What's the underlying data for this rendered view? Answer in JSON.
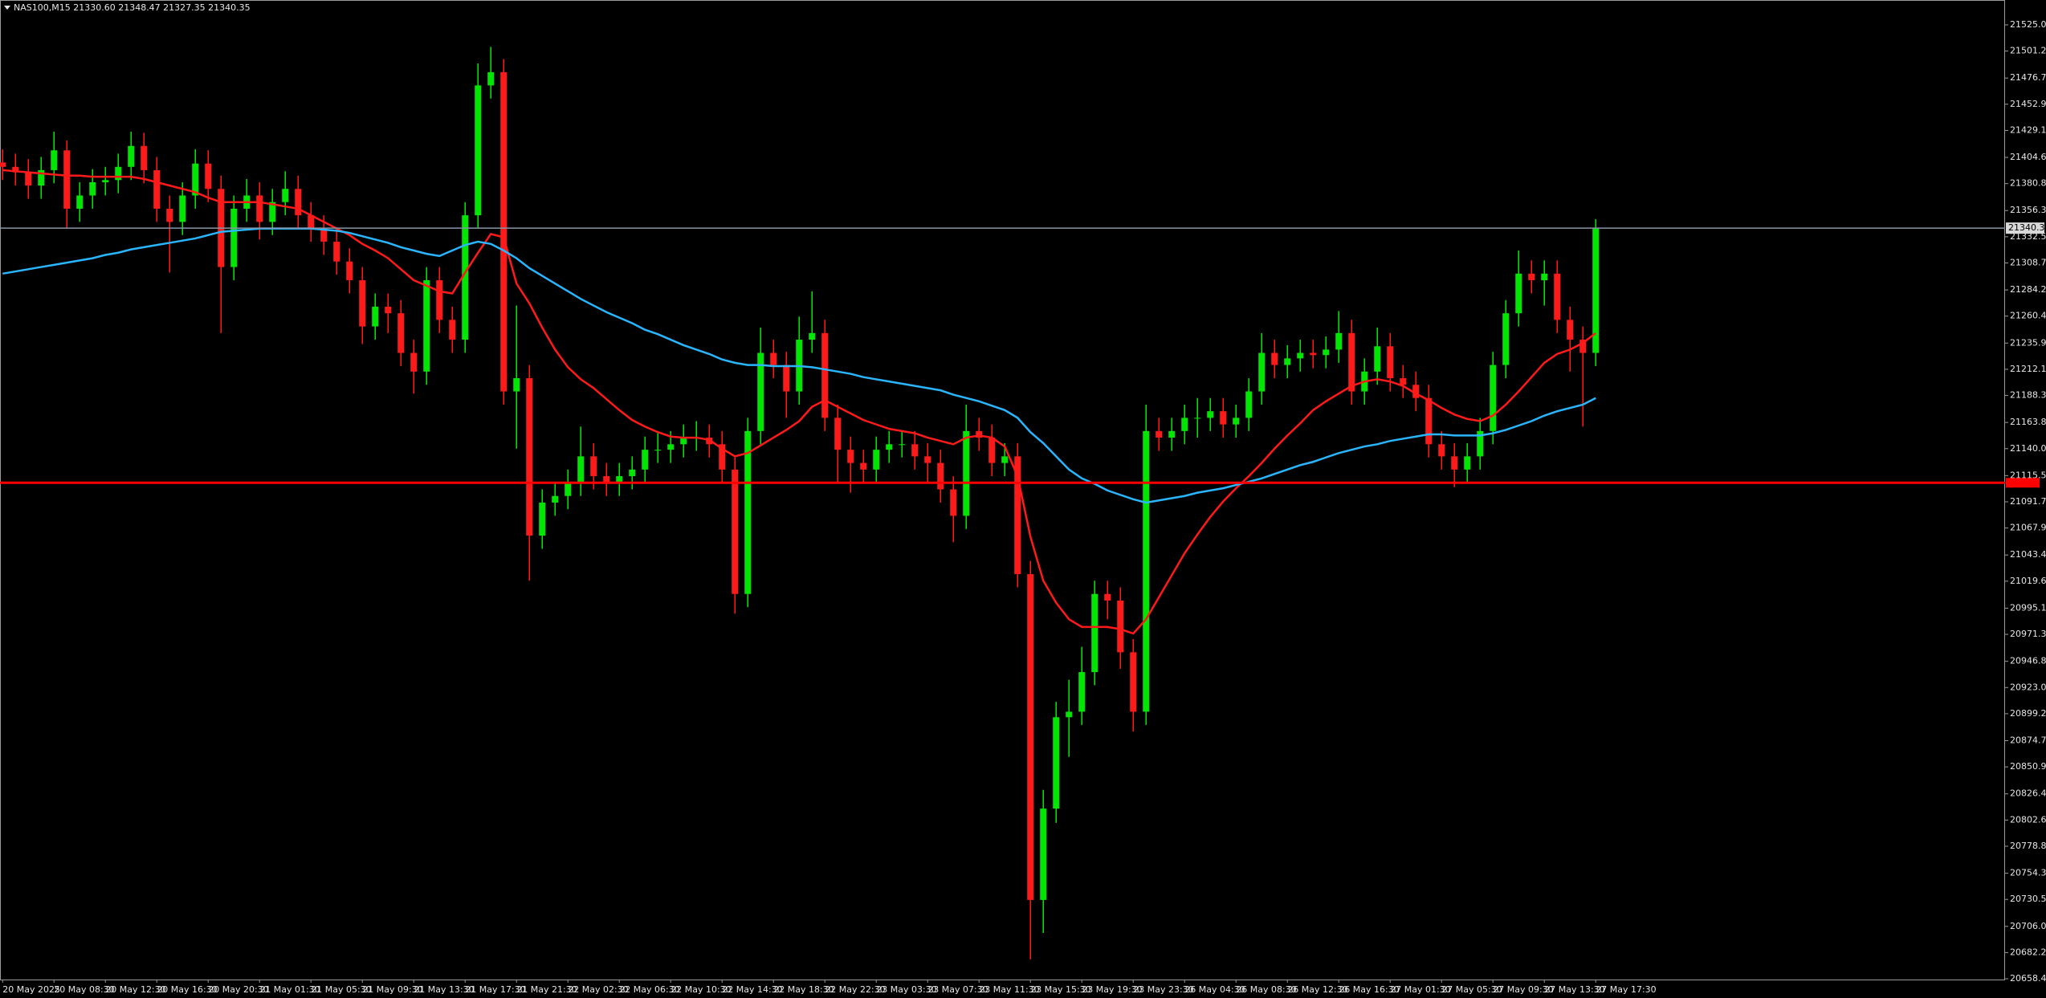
{
  "chart_data": {
    "type": "candlestick",
    "title": "NAS100,M15  21330.60 21348.47 21327.35 21340.35",
    "up_color": "#00e600",
    "down_color": "#ff1a1a",
    "ylim": [
      20657.7,
      21545.4
    ],
    "yticks": [
      {
        "value": 21525.0,
        "label": "21525.00"
      },
      {
        "value": 21501.2,
        "label": "21501.20"
      },
      {
        "value": 21476.7,
        "label": "21476.70"
      },
      {
        "value": 21452.9,
        "label": "21452.90"
      },
      {
        "value": 21429.1,
        "label": "21429.10"
      },
      {
        "value": 21404.6,
        "label": "21404.60"
      },
      {
        "value": 21380.8,
        "label": "21380.80"
      },
      {
        "value": 21356.3,
        "label": "21356.30"
      },
      {
        "value": 21332.5,
        "label": "21332.50"
      },
      {
        "value": 21308.7,
        "label": "21308.70"
      },
      {
        "value": 21284.2,
        "label": "21284.20"
      },
      {
        "value": 21260.4,
        "label": "21260.40"
      },
      {
        "value": 21235.9,
        "label": "21235.90"
      },
      {
        "value": 21212.1,
        "label": "21212.10"
      },
      {
        "value": 21188.3,
        "label": "21188.30"
      },
      {
        "value": 21163.8,
        "label": "21163.80"
      },
      {
        "value": 21140.0,
        "label": "21140.00"
      },
      {
        "value": 21115.5,
        "label": "21115.50"
      },
      {
        "value": 21091.7,
        "label": "21091.70"
      },
      {
        "value": 21067.9,
        "label": "21067.90"
      },
      {
        "value": 21043.4,
        "label": "21043.40"
      },
      {
        "value": 21019.6,
        "label": "21019.60"
      },
      {
        "value": 20995.1,
        "label": "20995.10"
      },
      {
        "value": 20971.3,
        "label": "20971.30"
      },
      {
        "value": 20946.8,
        "label": "20946.80"
      },
      {
        "value": 20923.0,
        "label": "20923.00"
      },
      {
        "value": 20899.2,
        "label": "20899.20"
      },
      {
        "value": 20874.7,
        "label": "20874.70"
      },
      {
        "value": 20850.9,
        "label": "20850.90"
      },
      {
        "value": 20826.4,
        "label": "20826.40"
      },
      {
        "value": 20802.6,
        "label": "20802.60"
      },
      {
        "value": 20778.8,
        "label": "20778.80"
      },
      {
        "value": 20754.3,
        "label": "20754.30"
      },
      {
        "value": 20730.5,
        "label": "20730.50"
      },
      {
        "value": 20706.0,
        "label": "20706.00"
      },
      {
        "value": 20682.2,
        "label": "20682.20"
      },
      {
        "value": 20658.4,
        "label": "20658.40"
      }
    ],
    "categories": [
      "20 May 2025",
      null,
      null,
      null,
      "20 May 08:30",
      null,
      null,
      null,
      "20 May 12:30",
      null,
      null,
      null,
      "20 May 16:30",
      null,
      null,
      null,
      "20 May 20:30",
      null,
      null,
      null,
      "21 May 01:30",
      null,
      null,
      null,
      "21 May 05:30",
      null,
      null,
      null,
      "21 May 09:30",
      null,
      null,
      null,
      "21 May 13:30",
      null,
      null,
      null,
      "21 May 17:30",
      null,
      null,
      null,
      "21 May 21:30",
      null,
      null,
      null,
      "22 May 02:30",
      null,
      null,
      null,
      "22 May 06:30",
      null,
      null,
      null,
      "22 May 10:30",
      null,
      null,
      null,
      "22 May 14:30",
      null,
      null,
      null,
      "22 May 18:30",
      null,
      null,
      null,
      "22 May 22:30",
      null,
      null,
      null,
      "23 May 03:30",
      null,
      null,
      null,
      "23 May 07:30",
      null,
      null,
      null,
      "23 May 11:30",
      null,
      null,
      null,
      "23 May 15:30",
      null,
      null,
      null,
      "23 May 19:30",
      null,
      null,
      null,
      "23 May 23:30",
      null,
      null,
      null,
      "26 May 04:30",
      null,
      null,
      null,
      "26 May 08:30",
      null,
      null,
      null,
      "26 May 12:30",
      null,
      null,
      null,
      "26 May 16:30",
      null,
      null,
      null,
      "27 May 01:30",
      null,
      null,
      null,
      "27 May 05:30",
      null,
      null,
      null,
      "27 May 09:30",
      null,
      null,
      null,
      "27 May 13:30",
      null,
      null,
      null,
      "27 May 17:30"
    ],
    "candles": [
      [
        21400,
        21412,
        21384,
        21396
      ],
      [
        21396,
        21408,
        21379,
        21391
      ],
      [
        21391,
        21403,
        21367,
        21379
      ],
      [
        21379,
        21405,
        21367,
        21393
      ],
      [
        21393,
        21428,
        21381,
        21411
      ],
      [
        21411,
        21420,
        21340,
        21358
      ],
      [
        21358,
        21382,
        21346,
        21370
      ],
      [
        21370,
        21394,
        21358,
        21382
      ],
      [
        21382,
        21396,
        21370,
        21384
      ],
      [
        21384,
        21408,
        21372,
        21396
      ],
      [
        21396,
        21428,
        21384,
        21415
      ],
      [
        21415,
        21427,
        21381,
        21393
      ],
      [
        21393,
        21405,
        21346,
        21358
      ],
      [
        21358,
        21370,
        21300,
        21346
      ],
      [
        21346,
        21382,
        21334,
        21370
      ],
      [
        21370,
        21412,
        21358,
        21399
      ],
      [
        21399,
        21411,
        21364,
        21376
      ],
      [
        21376,
        21388,
        21245,
        21305
      ],
      [
        21305,
        21370,
        21293,
        21358
      ],
      [
        21358,
        21385,
        21346,
        21370
      ],
      [
        21370,
        21382,
        21330,
        21346
      ],
      [
        21346,
        21376,
        21334,
        21364
      ],
      [
        21364,
        21392,
        21352,
        21376
      ],
      [
        21376,
        21388,
        21340,
        21352
      ],
      [
        21352,
        21364,
        21328,
        21340
      ],
      [
        21340,
        21352,
        21316,
        21328
      ],
      [
        21328,
        21340,
        21298,
        21310
      ],
      [
        21310,
        21322,
        21281,
        21293
      ],
      [
        21293,
        21305,
        21235,
        21251
      ],
      [
        21251,
        21281,
        21239,
        21269
      ],
      [
        21269,
        21281,
        21245,
        21263
      ],
      [
        21263,
        21275,
        21215,
        21227
      ],
      [
        21227,
        21239,
        21190,
        21210
      ],
      [
        21210,
        21305,
        21198,
        21293
      ],
      [
        21293,
        21305,
        21245,
        21257
      ],
      [
        21257,
        21269,
        21227,
        21239
      ],
      [
        21239,
        21364,
        21227,
        21352
      ],
      [
        21352,
        21490,
        21340,
        21470
      ],
      [
        21470,
        21505,
        21458,
        21482
      ],
      [
        21482,
        21494,
        21180,
        21192
      ],
      [
        21192,
        21270,
        21140,
        21204
      ],
      [
        21204,
        21216,
        21020,
        21061
      ],
      [
        21061,
        21103,
        21049,
        21091
      ],
      [
        21091,
        21109,
        21079,
        21097
      ],
      [
        21097,
        21121,
        21085,
        21109
      ],
      [
        21109,
        21160,
        21097,
        21133
      ],
      [
        21133,
        21145,
        21103,
        21115
      ],
      [
        21115,
        21127,
        21097,
        21109
      ],
      [
        21109,
        21127,
        21097,
        21115
      ],
      [
        21115,
        21133,
        21103,
        21121
      ],
      [
        21121,
        21151,
        21109,
        21139
      ],
      [
        21139,
        21156,
        21127,
        21139
      ],
      [
        21139,
        21156,
        21127,
        21144
      ],
      [
        21144,
        21162,
        21132,
        21150
      ],
      [
        21150,
        21165,
        21138,
        21150
      ],
      [
        21150,
        21162,
        21132,
        21144
      ],
      [
        21144,
        21156,
        21109,
        21121
      ],
      [
        21121,
        21133,
        20990,
        21008
      ],
      [
        21008,
        21168,
        20996,
        21156
      ],
      [
        21156,
        21250,
        21144,
        21227
      ],
      [
        21227,
        21239,
        21204,
        21216
      ],
      [
        21216,
        21228,
        21168,
        21192
      ],
      [
        21192,
        21260,
        21180,
        21239
      ],
      [
        21239,
        21283,
        21227,
        21245
      ],
      [
        21245,
        21257,
        21156,
        21168
      ],
      [
        21168,
        21180,
        21110,
        21139
      ],
      [
        21139,
        21151,
        21100,
        21127
      ],
      [
        21127,
        21139,
        21109,
        21121
      ],
      [
        21121,
        21151,
        21109,
        21139
      ],
      [
        21139,
        21156,
        21127,
        21144
      ],
      [
        21144,
        21156,
        21132,
        21144
      ],
      [
        21144,
        21156,
        21121,
        21133
      ],
      [
        21133,
        21145,
        21110,
        21127
      ],
      [
        21127,
        21139,
        21091,
        21103
      ],
      [
        21103,
        21115,
        21055,
        21079
      ],
      [
        21079,
        21180,
        21067,
        21156
      ],
      [
        21156,
        21168,
        21138,
        21150
      ],
      [
        21150,
        21162,
        21115,
        21127
      ],
      [
        21127,
        21145,
        21115,
        21133
      ],
      [
        21133,
        21145,
        21014,
        21026
      ],
      [
        21026,
        21038,
        20676,
        20730
      ],
      [
        20730,
        20830,
        20700,
        20813
      ],
      [
        20813,
        20910,
        20800,
        20896
      ],
      [
        20896,
        20930,
        20860,
        20901
      ],
      [
        20901,
        20960,
        20889,
        20937
      ],
      [
        20937,
        21020,
        20925,
        21008
      ],
      [
        21008,
        21020,
        20985,
        21002
      ],
      [
        21002,
        21014,
        20940,
        20955
      ],
      [
        20955,
        20967,
        20883,
        20901
      ],
      [
        20901,
        21180,
        20889,
        21156
      ],
      [
        21156,
        21168,
        21138,
        21150
      ],
      [
        21150,
        21168,
        21138,
        21156
      ],
      [
        21156,
        21180,
        21144,
        21168
      ],
      [
        21168,
        21186,
        21150,
        21168
      ],
      [
        21168,
        21186,
        21156,
        21174
      ],
      [
        21174,
        21186,
        21150,
        21162
      ],
      [
        21162,
        21180,
        21150,
        21168
      ],
      [
        21168,
        21204,
        21156,
        21192
      ],
      [
        21192,
        21245,
        21180,
        21227
      ],
      [
        21227,
        21239,
        21204,
        21216
      ],
      [
        21216,
        21234,
        21204,
        21222
      ],
      [
        21222,
        21239,
        21210,
        21227
      ],
      [
        21227,
        21239,
        21213,
        21225
      ],
      [
        21225,
        21242,
        21213,
        21230
      ],
      [
        21230,
        21265,
        21218,
        21245
      ],
      [
        21245,
        21257,
        21180,
        21192
      ],
      [
        21192,
        21222,
        21180,
        21210
      ],
      [
        21210,
        21250,
        21198,
        21233
      ],
      [
        21233,
        21245,
        21192,
        21204
      ],
      [
        21204,
        21216,
        21186,
        21198
      ],
      [
        21198,
        21210,
        21174,
        21186
      ],
      [
        21186,
        21198,
        21132,
        21144
      ],
      [
        21144,
        21156,
        21121,
        21133
      ],
      [
        21133,
        21145,
        21105,
        21121
      ],
      [
        21121,
        21145,
        21109,
        21133
      ],
      [
        21133,
        21168,
        21121,
        21156
      ],
      [
        21156,
        21228,
        21144,
        21216
      ],
      [
        21216,
        21275,
        21204,
        21263
      ],
      [
        21263,
        21320,
        21251,
        21299
      ],
      [
        21299,
        21311,
        21281,
        21293
      ],
      [
        21293,
        21311,
        21270,
        21299
      ],
      [
        21299,
        21311,
        21245,
        21257
      ],
      [
        21257,
        21269,
        21210,
        21239
      ],
      [
        21239,
        21251,
        21160,
        21227
      ],
      [
        21227,
        21348.47,
        21215,
        21340.35
      ]
    ],
    "lines": [
      {
        "color": "#ff1a1a",
        "values": [
          21393,
          21392,
          21391,
          21390,
          21389,
          21388,
          21388,
          21387,
          21387,
          21387,
          21387,
          21385,
          21382,
          21379,
          21376,
          21373,
          21368,
          21364,
          21364,
          21364,
          21364,
          21362,
          21360,
          21358,
          21352,
          21346,
          21340,
          21334,
          21326,
          21320,
          21313,
          21303,
          21293,
          21288,
          21283,
          21281,
          21300,
          21318,
          21335,
          21332,
          21290,
          21272,
          21250,
          21230,
          21214,
          21203,
          21195,
          21185,
          21175,
          21166,
          21160,
          21155,
          21151,
          21150,
          21150,
          21148,
          21140,
          21133,
          21136,
          21143,
          21150,
          21157,
          21165,
          21178,
          21184,
          21178,
          21172,
          21166,
          21162,
          21158,
          21156,
          21154,
          21150,
          21147,
          21144,
          21150,
          21152,
          21150,
          21142,
          21115,
          21060,
          21020,
          21000,
          20985,
          20978,
          20978,
          20978,
          20976,
          20972,
          20985,
          21005,
          21025,
          21045,
          21062,
          21078,
          21092,
          21104,
          21115,
          21127,
          21140,
          21152,
          21163,
          21175,
          21183,
          21190,
          21197,
          21201,
          21203,
          21201,
          21197,
          21190,
          21184,
          21177,
          21171,
          21167,
          21165,
          21170,
          21180,
          21192,
          21205,
          21218,
          21226,
          21230,
          21236,
          21245
        ]
      },
      {
        "color": "#29b6ff",
        "values": [
          21299,
          21301,
          21303,
          21305,
          21307,
          21309,
          21311,
          21313,
          21316,
          21318,
          21321,
          21323,
          21325,
          21327,
          21329,
          21331,
          21334,
          21337,
          21338,
          21339,
          21340,
          21340,
          21340,
          21340,
          21340,
          21339,
          21338,
          21336,
          21333,
          21330,
          21327,
          21323,
          21320,
          21317,
          21315,
          21320,
          21325,
          21328,
          21326,
          21320,
          21313,
          21304,
          21297,
          21290,
          21283,
          21276,
          21270,
          21264,
          21259,
          21254,
          21248,
          21244,
          21239,
          21234,
          21230,
          21226,
          21221,
          21218,
          21216,
          21216,
          21215,
          21215,
          21215,
          21214,
          21212,
          21210,
          21208,
          21205,
          21203,
          21201,
          21199,
          21197,
          21195,
          21193,
          21189,
          21186,
          21183,
          21179,
          21175,
          21168,
          21155,
          21145,
          21133,
          21121,
          21113,
          21108,
          21102,
          21098,
          21094,
          21091,
          21093,
          21095,
          21097,
          21100,
          21102,
          21104,
          21107,
          21110,
          21113,
          21117,
          21121,
          21125,
          21128,
          21132,
          21136,
          21139,
          21142,
          21144,
          21147,
          21149,
          21151,
          21153,
          21153,
          21152,
          21152,
          21152,
          21154,
          21157,
          21161,
          21165,
          21170,
          21174,
          21177,
          21180,
          21186
        ]
      }
    ],
    "price_line": {
      "value": 21340.35,
      "color": "#8796a8"
    },
    "level_line": {
      "value": 21109,
      "color": "#ff0000"
    }
  }
}
